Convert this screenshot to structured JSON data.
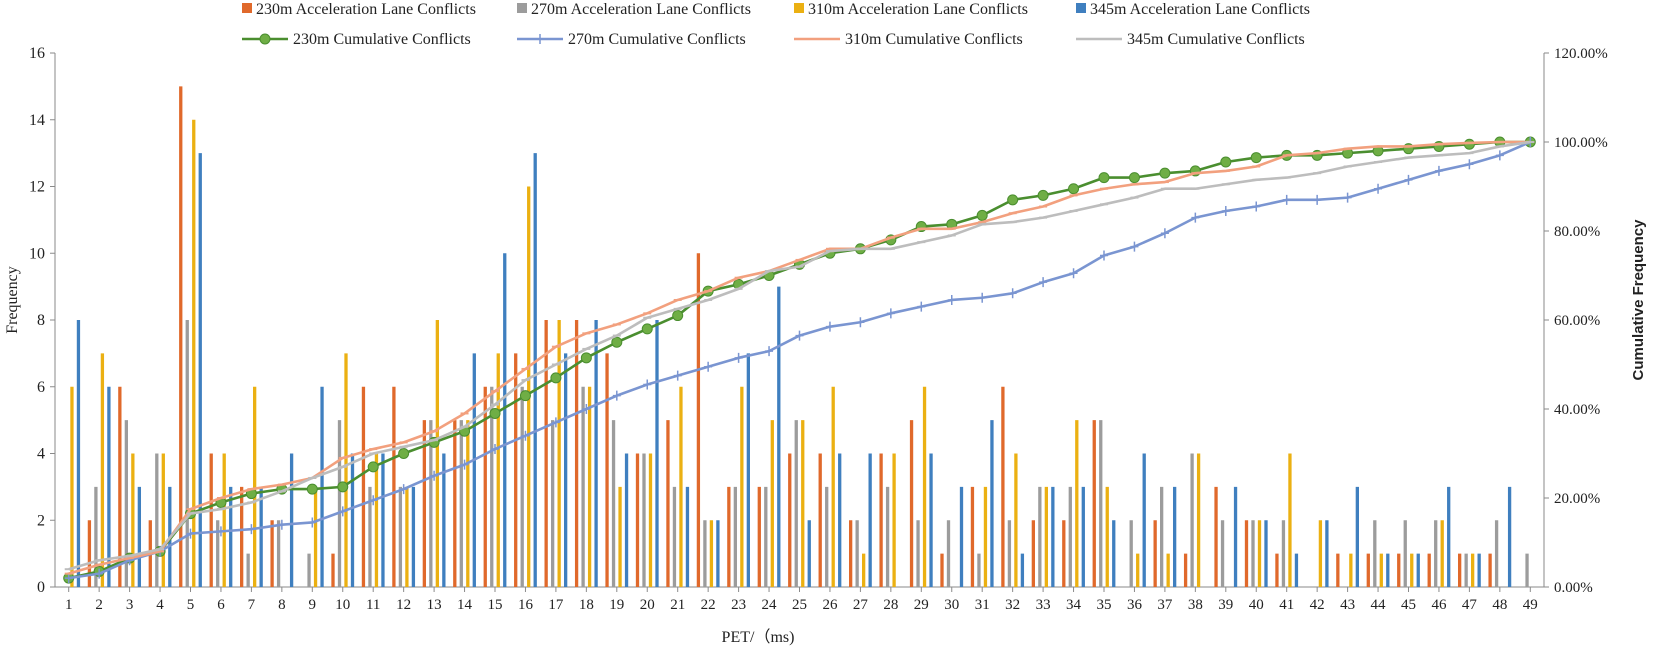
{
  "chart_data": {
    "type": "bar",
    "xlabel": "PET/（ms)",
    "ylabel": "Frequency",
    "y2label": "Cumulative Frequency",
    "ylim": [
      0,
      16
    ],
    "yticks": [
      "0",
      "2",
      "4",
      "6",
      "8",
      "10",
      "12",
      "14",
      "16"
    ],
    "y2lim": [
      0,
      1.2
    ],
    "y2ticks": [
      "0.00%",
      "20.00%",
      "40.00%",
      "60.00%",
      "80.00%",
      "100.00%",
      "120.00%"
    ],
    "categories": [
      "1",
      "2",
      "3",
      "4",
      "5",
      "6",
      "7",
      "8",
      "9",
      "10",
      "11",
      "12",
      "13",
      "14",
      "15",
      "16",
      "17",
      "18",
      "19",
      "20",
      "21",
      "22",
      "23",
      "24",
      "25",
      "26",
      "27",
      "28",
      "29",
      "30",
      "31",
      "32",
      "33",
      "34",
      "35",
      "36",
      "37",
      "38",
      "39",
      "40",
      "41",
      "42",
      "43",
      "44",
      "45",
      "46",
      "47",
      "48",
      "49"
    ],
    "bar_series": [
      {
        "name": "230m Acceleration Lane Conflicts",
        "color": "#E0692B",
        "values": [
          0,
          2,
          6,
          2,
          15,
          4,
          3,
          2,
          0,
          1,
          6,
          6,
          5,
          5,
          6,
          7,
          8,
          8,
          7,
          4,
          5,
          10,
          3,
          3,
          4,
          4,
          2,
          4,
          5,
          1,
          3,
          6,
          2,
          2,
          5,
          0,
          2,
          1,
          3,
          2,
          1,
          0,
          1,
          1,
          1,
          1,
          1,
          1,
          0
        ]
      },
      {
        "name": "270m Acceleration Lane Conflicts",
        "color": "#9C9C9C",
        "values": [
          0,
          3,
          5,
          4,
          8,
          2,
          1,
          2,
          1,
          5,
          3,
          3,
          5,
          5,
          6,
          6,
          5,
          6,
          5,
          4,
          3,
          2,
          3,
          3,
          5,
          3,
          2,
          3,
          2,
          2,
          1,
          2,
          3,
          3,
          5,
          2,
          3,
          4,
          2,
          2,
          2,
          0,
          0,
          2,
          2,
          2,
          1,
          2,
          1
        ]
      },
      {
        "name": "310m Acceleration Lane Conflicts",
        "color": "#EBB012",
        "values": [
          6,
          7,
          4,
          4,
          14,
          4,
          6,
          0,
          3,
          7,
          4,
          3,
          8,
          5,
          7,
          12,
          8,
          6,
          3,
          4,
          6,
          2,
          6,
          5,
          5,
          6,
          1,
          4,
          6,
          0,
          3,
          4,
          3,
          5,
          3,
          1,
          1,
          4,
          0,
          2,
          4,
          2,
          1,
          1,
          1,
          2,
          1,
          0,
          0
        ]
      },
      {
        "name": "345m Acceleration Lane Conflicts",
        "color": "#3F7FBF",
        "values": [
          8,
          6,
          3,
          3,
          13,
          3,
          3,
          4,
          6,
          4,
          4,
          3,
          4,
          7,
          10,
          13,
          7,
          8,
          4,
          8,
          3,
          2,
          7,
          9,
          2,
          4,
          4,
          0,
          4,
          3,
          5,
          1,
          3,
          3,
          2,
          4,
          3,
          0,
          3,
          2,
          1,
          2,
          3,
          1,
          1,
          3,
          1,
          3,
          0
        ]
      }
    ],
    "line_series": [
      {
        "name": "230m Cumulative Conflicts",
        "color": "#4A8E2F",
        "marker": "circle",
        "values": [
          0.02,
          0.035,
          0.065,
          0.08,
          0.165,
          0.19,
          0.21,
          0.22,
          0.22,
          0.225,
          0.27,
          0.3,
          0.325,
          0.35,
          0.39,
          0.43,
          0.47,
          0.515,
          0.55,
          0.58,
          0.61,
          0.665,
          0.68,
          0.7,
          0.725,
          0.75,
          0.76,
          0.78,
          0.81,
          0.815,
          0.835,
          0.87,
          0.88,
          0.895,
          0.92,
          0.92,
          0.93,
          0.935,
          0.955,
          0.965,
          0.97,
          0.97,
          0.975,
          0.98,
          0.985,
          0.99,
          0.995,
          1.0,
          1.0
        ]
      },
      {
        "name": "270m Cumulative Conflicts",
        "color": "#7A95D1",
        "marker": "plus",
        "values": [
          0.02,
          0.03,
          0.06,
          0.08,
          0.12,
          0.125,
          0.13,
          0.14,
          0.145,
          0.17,
          0.195,
          0.22,
          0.25,
          0.275,
          0.31,
          0.34,
          0.37,
          0.4,
          0.43,
          0.455,
          0.475,
          0.495,
          0.515,
          0.53,
          0.565,
          0.585,
          0.595,
          0.615,
          0.63,
          0.645,
          0.65,
          0.66,
          0.685,
          0.705,
          0.745,
          0.765,
          0.795,
          0.83,
          0.845,
          0.855,
          0.87,
          0.87,
          0.875,
          0.895,
          0.915,
          0.935,
          0.95,
          0.97,
          1.0
        ]
      },
      {
        "name": "310m Cumulative Conflicts",
        "color": "#F2A07E",
        "marker": "dash",
        "values": [
          0.03,
          0.05,
          0.065,
          0.08,
          0.175,
          0.2,
          0.22,
          0.23,
          0.245,
          0.29,
          0.31,
          0.325,
          0.35,
          0.39,
          0.44,
          0.49,
          0.54,
          0.57,
          0.59,
          0.615,
          0.645,
          0.665,
          0.695,
          0.71,
          0.735,
          0.76,
          0.76,
          0.785,
          0.805,
          0.805,
          0.82,
          0.84,
          0.855,
          0.88,
          0.895,
          0.905,
          0.91,
          0.93,
          0.935,
          0.945,
          0.97,
          0.975,
          0.985,
          0.99,
          0.99,
          0.995,
          0.998,
          1.0,
          1.0
        ]
      },
      {
        "name": "345m Cumulative Conflicts",
        "color": "#BDBDBD",
        "marker": "dash",
        "values": [
          0.04,
          0.06,
          0.07,
          0.085,
          0.165,
          0.175,
          0.19,
          0.215,
          0.245,
          0.27,
          0.3,
          0.315,
          0.33,
          0.36,
          0.41,
          0.465,
          0.5,
          0.535,
          0.565,
          0.605,
          0.625,
          0.645,
          0.67,
          0.71,
          0.72,
          0.755,
          0.76,
          0.76,
          0.775,
          0.79,
          0.815,
          0.82,
          0.83,
          0.845,
          0.86,
          0.875,
          0.895,
          0.895,
          0.905,
          0.915,
          0.92,
          0.93,
          0.945,
          0.955,
          0.965,
          0.97,
          0.975,
          0.99,
          1.0
        ]
      }
    ],
    "legend_position": "top",
    "grid": false
  }
}
